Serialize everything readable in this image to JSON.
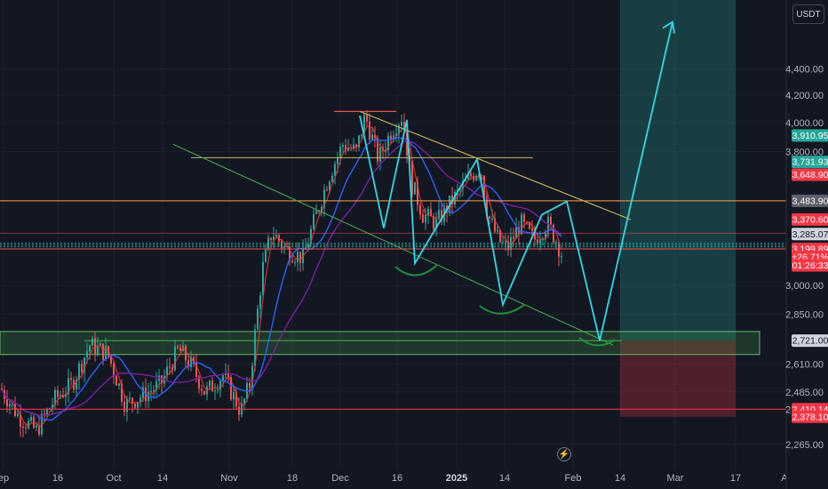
{
  "currency": "USDT",
  "chart_data": {
    "type": "line",
    "title": "",
    "yscale": "log",
    "ylim": [
      2150,
      4900
    ],
    "price_ticks": [
      "2,265.00",
      "2,410.00",
      "2,485.00",
      "2,610.00",
      "2,850.00",
      "3,000.00",
      "3,800.00",
      "4,000.00",
      "4,200.00",
      "4,400.00"
    ],
    "time_ticks": [
      "ep",
      "16",
      "Oct",
      "14",
      "Nov",
      "18",
      "Dec",
      "16",
      "2025",
      "14",
      "Feb",
      "14",
      "Mar",
      "17",
      "Ap"
    ],
    "bold_time_tick": "2025",
    "price_badges": [
      {
        "label": "3,910.95",
        "price": 3910.95,
        "color": "#26a69a",
        "text_color": "#ffffff"
      },
      {
        "label": "3,731.93",
        "price": 3731.93,
        "color": "#26a69a",
        "text_color": "#ffffff"
      },
      {
        "label": "3,648.90",
        "price": 3648.9,
        "color": "#f23645",
        "text_color": "#ffffff"
      },
      {
        "label": "3,483.90",
        "price": 3483.9,
        "color": "#5d606b",
        "text_color": "#ffffff"
      },
      {
        "label": "3,370.60",
        "price": 3370.6,
        "color": "#f23645",
        "text_color": "#ffffff"
      },
      {
        "label": "3,285.07",
        "price": 3285.07,
        "color": "#d1d4dc",
        "text_color": "#131722"
      },
      {
        "label": "3,199.89",
        "price": 3199.89,
        "color": "#f23645",
        "text_color": "#ffffff"
      },
      {
        "label": "+26.71%",
        "price": 3155,
        "color": "#f23645",
        "text_color": "#ffffff"
      },
      {
        "label": "01:26:33",
        "price": 3108,
        "color": "#f23645",
        "text_color": "#ffffff"
      },
      {
        "label": "2,721.00",
        "price": 2721,
        "color": "#d1d4dc",
        "text_color": "#131722"
      },
      {
        "label": "2,410.14",
        "price": 2410.14,
        "color": "#f23645",
        "text_color": "#ffffff"
      },
      {
        "label": "2,378.10",
        "price": 2378.1,
        "color": "#f23645",
        "text_color": "#ffffff"
      }
    ],
    "hlines": [
      {
        "price": 3483.9,
        "color": "#f7a23c"
      },
      {
        "price": 3199.89,
        "color": "#ef5350"
      },
      {
        "price": 2410.14,
        "color": "#f23645"
      }
    ],
    "zigzag": [
      [
        405,
        4050
      ],
      [
        432,
        3320
      ],
      [
        458,
        4020
      ],
      [
        467,
        3120
      ],
      [
        537,
        3750
      ],
      [
        566,
        2900
      ],
      [
        610,
        3400
      ],
      [
        638,
        3480
      ],
      [
        675,
        2721
      ],
      [
        757,
        4780
      ]
    ],
    "colors": {
      "up": "#26a69a",
      "down": "#ef5350",
      "zigzag": "#2fd9e8",
      "ema_blue": "#2962ff",
      "ma_purple": "#7b1fa2",
      "ma_red": "#e53935"
    }
  }
}
